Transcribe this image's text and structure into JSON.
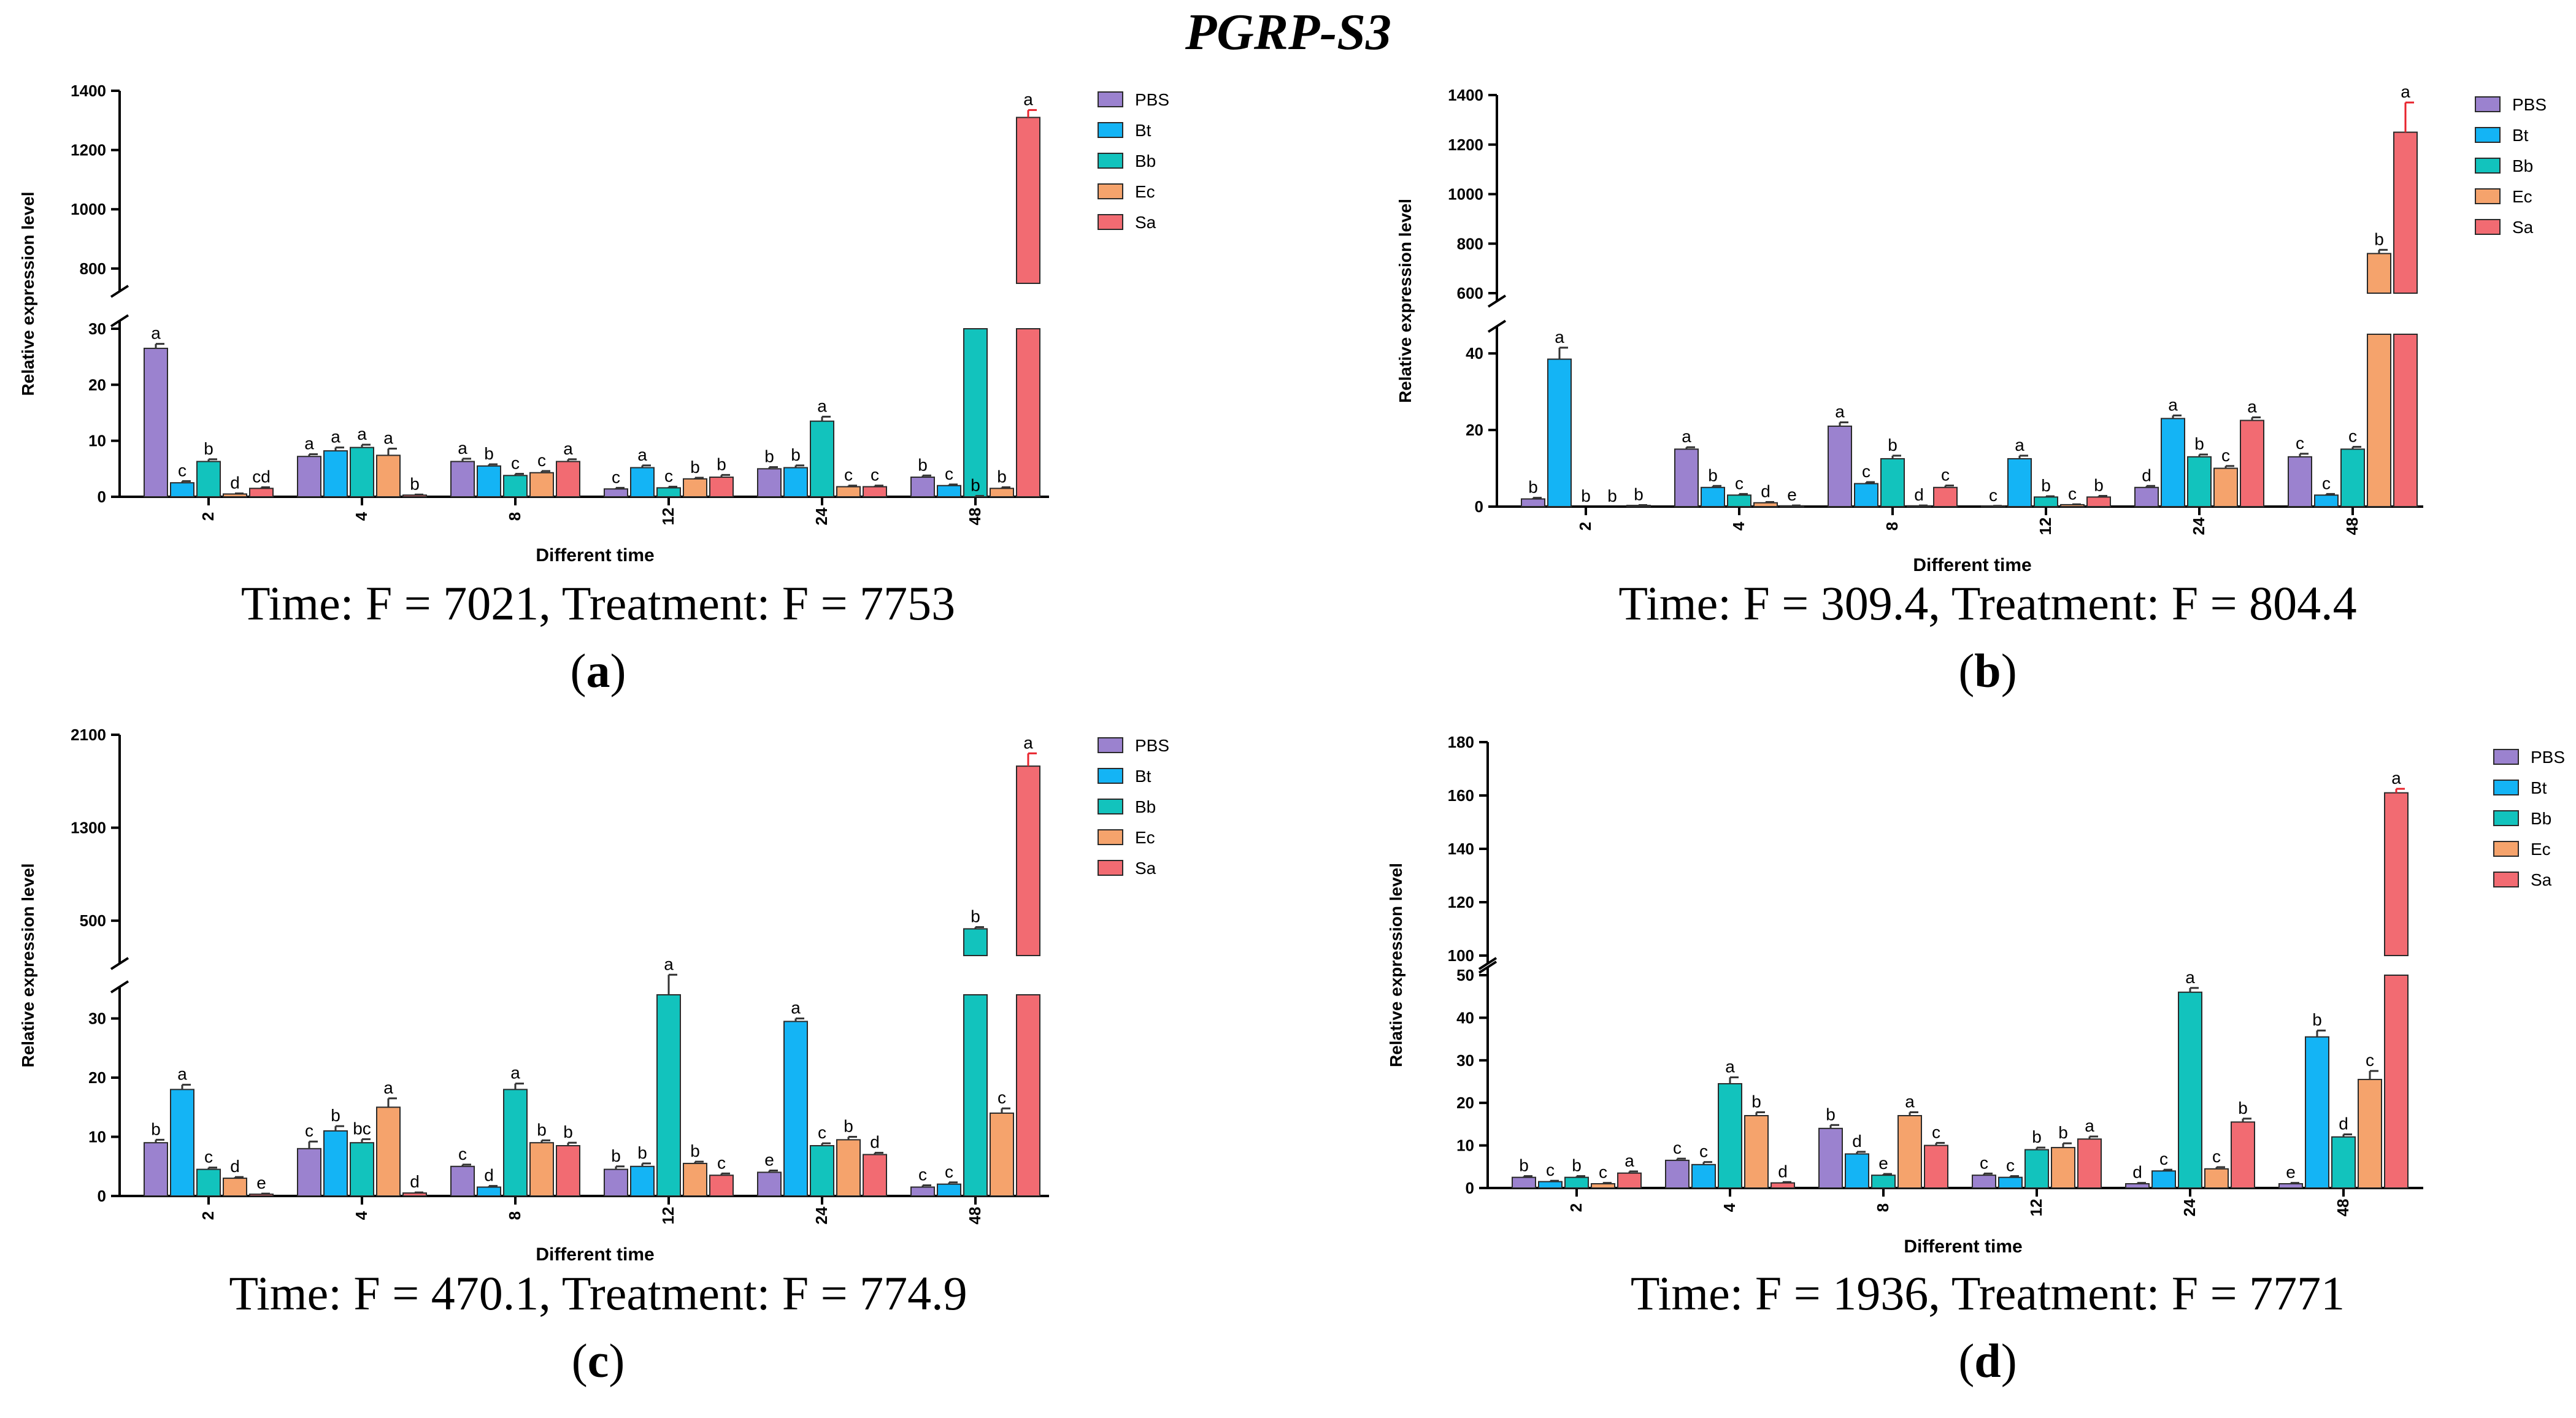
{
  "figure_title": "PGRP-S3",
  "legend_items": [
    "PBS",
    "Bt",
    "Bb",
    "Ec",
    "Sa"
  ],
  "colors": {
    "PBS": "#9b82cf",
    "Bt": "#14b4f5",
    "Bb": "#12c3bd",
    "Ec": "#f5a36c",
    "Sa": "#f26b72",
    "error": "#e8232c"
  },
  "chart_data": [
    {
      "panel": "a",
      "type": "bar",
      "title": "PGRP-S3",
      "xlabel": "Different time",
      "ylabel": "Relative expression level",
      "categories": [
        "2",
        "4",
        "8",
        "12",
        "24",
        "48"
      ],
      "series_names": [
        "PBS",
        "Bt",
        "Bb",
        "Ec",
        "Sa"
      ],
      "values": [
        [
          26.5,
          2.5,
          6.3,
          0.5,
          1.5
        ],
        [
          7.2,
          8.2,
          8.8,
          7.4,
          0.3
        ],
        [
          6.3,
          5.5,
          3.8,
          4.3,
          6.3
        ],
        [
          1.4,
          5.2,
          1.6,
          3.2,
          3.5
        ],
        [
          5.0,
          5.2,
          13.5,
          1.8,
          1.8
        ],
        [
          3.5,
          2.0,
          30.5,
          1.5,
          1310
        ]
      ],
      "errors": [
        [
          0.8,
          0.3,
          0.4,
          0.1,
          0.2
        ],
        [
          0.4,
          0.6,
          0.5,
          1.2,
          0.1
        ],
        [
          0.5,
          0.3,
          0.3,
          0.3,
          0.4
        ],
        [
          0.2,
          0.4,
          0.2,
          0.2,
          0.4
        ],
        [
          0.3,
          0.4,
          0.8,
          0.2,
          0.2
        ],
        [
          0.3,
          0.2,
          2.0,
          0.2,
          25
        ]
      ],
      "letters": [
        [
          "a",
          "c",
          "b",
          "d",
          "cd"
        ],
        [
          "a",
          "a",
          "a",
          "a",
          "b"
        ],
        [
          "a",
          "b",
          "c",
          "c",
          "a"
        ],
        [
          "c",
          "a",
          "c",
          "b",
          "b"
        ],
        [
          "b",
          "b",
          "a",
          "c",
          "c"
        ],
        [
          "b",
          "c",
          "b",
          "b",
          "a"
        ]
      ],
      "axis": {
        "lower_range": [
          0,
          30
        ],
        "lower_ticks": [
          0,
          10,
          20,
          30
        ],
        "upper_range": [
          750,
          1400
        ],
        "upper_ticks": [
          800,
          1000,
          1200,
          1400
        ]
      },
      "stats": "Time: F = 7021, Treatment: F = 7753",
      "label_open": "(",
      "label_letter": "a",
      "label_close": ")"
    },
    {
      "panel": "b",
      "type": "bar",
      "title": "PGRP-S3",
      "xlabel": "Different time",
      "ylabel": "Relative expression level",
      "categories": [
        "2",
        "4",
        "8",
        "12",
        "24",
        "48"
      ],
      "series_names": [
        "PBS",
        "Bt",
        "Bb",
        "Ec",
        "Sa"
      ],
      "values": [
        [
          2.0,
          38.5,
          0,
          0,
          0.3
        ],
        [
          15.0,
          5.0,
          3.0,
          1.0,
          0.2
        ],
        [
          21.0,
          6.0,
          12.5,
          0.2,
          5.0
        ],
        [
          0.1,
          12.5,
          2.5,
          0.5,
          2.5
        ],
        [
          5.0,
          23.0,
          13.0,
          10.0,
          22.5
        ],
        [
          13.0,
          3.0,
          15.0,
          760,
          1250
        ]
      ],
      "errors": [
        [
          0.3,
          3.0,
          0,
          0,
          0.1
        ],
        [
          0.5,
          0.4,
          0.3,
          0.2,
          0.1
        ],
        [
          1.0,
          0.4,
          0.8,
          0.1,
          0.5
        ],
        [
          0.1,
          0.8,
          0.2,
          0.1,
          0.3
        ],
        [
          0.4,
          0.8,
          0.6,
          0.6,
          0.8
        ],
        [
          0.8,
          0.3,
          0.6,
          15,
          120
        ]
      ],
      "letters": [
        [
          "b",
          "a",
          "b",
          "b",
          "b"
        ],
        [
          "a",
          "b",
          "c",
          "d",
          "e"
        ],
        [
          "a",
          "c",
          "b",
          "d",
          "c"
        ],
        [
          "c",
          "a",
          "b",
          "c",
          "b"
        ],
        [
          "d",
          "a",
          "b",
          "c",
          "a"
        ],
        [
          "c",
          "c",
          "c",
          "b",
          "a"
        ]
      ],
      "axis": {
        "lower_range": [
          0,
          45
        ],
        "lower_ticks": [
          0,
          20,
          40
        ],
        "upper_range": [
          600,
          1400
        ],
        "upper_ticks": [
          600,
          800,
          1000,
          1200,
          1400
        ]
      },
      "stats": "Time: F = 309.4, Treatment: F = 804.4",
      "label_open": "(",
      "label_letter": "b",
      "label_close": ")"
    },
    {
      "panel": "c",
      "type": "bar",
      "title": "PGRP-S3",
      "xlabel": "Different time",
      "ylabel": "Relative expression level",
      "categories": [
        "2",
        "4",
        "8",
        "12",
        "24",
        "48"
      ],
      "series_names": [
        "PBS",
        "Bt",
        "Bb",
        "Ec",
        "Sa"
      ],
      "values": [
        [
          9.0,
          18.0,
          4.5,
          3.0,
          0.3
        ],
        [
          8.0,
          11.0,
          9.0,
          15.0,
          0.5
        ],
        [
          5.0,
          1.5,
          18.0,
          9.0,
          8.5
        ],
        [
          4.5,
          5.0,
          34.0,
          5.5,
          3.5
        ],
        [
          4.0,
          29.5,
          8.5,
          9.5,
          7.0
        ],
        [
          1.5,
          2.0,
          430,
          14.0,
          1830
        ]
      ],
      "errors": [
        [
          0.5,
          0.8,
          0.3,
          0.2,
          0.1
        ],
        [
          1.2,
          0.8,
          0.6,
          1.5,
          0.1
        ],
        [
          0.3,
          0.2,
          1.0,
          0.4,
          0.5
        ],
        [
          0.5,
          0.5,
          1.0,
          0.3,
          0.3
        ],
        [
          0.3,
          0.5,
          0.4,
          0.5,
          0.3
        ],
        [
          0.3,
          0.3,
          15,
          0.8,
          110
        ]
      ],
      "letters": [
        [
          "b",
          "a",
          "c",
          "d",
          "e"
        ],
        [
          "c",
          "b",
          "bc",
          "a",
          "d"
        ],
        [
          "c",
          "d",
          "a",
          "b",
          "b"
        ],
        [
          "b",
          "b",
          "a",
          "b",
          "c"
        ],
        [
          "e",
          "a",
          "c",
          "b",
          "d"
        ],
        [
          "c",
          "c",
          "b",
          "c",
          "a"
        ]
      ],
      "axis": {
        "lower_range": [
          0,
          34
        ],
        "lower_ticks": [
          0,
          10,
          20,
          30
        ],
        "upper_range": [
          200,
          2100
        ],
        "upper_ticks": [
          500,
          1300,
          2100
        ]
      },
      "stats": "Time: F = 470.1, Treatment: F = 774.9",
      "label_open": "(",
      "label_letter": "c",
      "label_close": ")"
    },
    {
      "panel": "d",
      "type": "bar",
      "title": "PGRP-S3",
      "xlabel": "Different time",
      "ylabel": "Relative expression level",
      "categories": [
        "2",
        "4",
        "8",
        "12",
        "24",
        "48"
      ],
      "series_names": [
        "PBS",
        "Bt",
        "Bb",
        "Ec",
        "Sa"
      ],
      "values": [
        [
          2.5,
          1.5,
          2.5,
          1.0,
          3.5
        ],
        [
          6.5,
          5.5,
          24.5,
          17.0,
          1.2
        ],
        [
          14.0,
          8.0,
          3.0,
          17.0,
          10.0
        ],
        [
          3.0,
          2.5,
          9.0,
          9.5,
          11.5
        ],
        [
          1.0,
          4.0,
          46.0,
          4.5,
          15.5
        ],
        [
          1.0,
          35.5,
          12.0,
          25.5,
          161
        ]
      ],
      "errors": [
        [
          0.3,
          0.2,
          0.3,
          0.2,
          0.4
        ],
        [
          0.4,
          0.6,
          1.5,
          0.8,
          0.2
        ],
        [
          0.8,
          0.5,
          0.3,
          0.8,
          0.6
        ],
        [
          0.4,
          0.3,
          0.5,
          1.0,
          0.6
        ],
        [
          0.2,
          0.3,
          1.0,
          0.4,
          0.8
        ],
        [
          0.2,
          1.5,
          0.6,
          2.0,
          1.5
        ]
      ],
      "letters": [
        [
          "b",
          "c",
          "b",
          "c",
          "a"
        ],
        [
          "c",
          "c",
          "a",
          "b",
          "d"
        ],
        [
          "b",
          "d",
          "e",
          "a",
          "c"
        ],
        [
          "c",
          "c",
          "b",
          "b",
          "a"
        ],
        [
          "d",
          "c",
          "a",
          "c",
          "b"
        ],
        [
          "e",
          "b",
          "d",
          "c",
          "a"
        ]
      ],
      "axis": {
        "lower_range": [
          0,
          50
        ],
        "lower_ticks": [
          0,
          10,
          20,
          30,
          40,
          50
        ],
        "upper_range": [
          100,
          180
        ],
        "upper_ticks": [
          100,
          120,
          140,
          160,
          180
        ]
      },
      "stats": "Time: F = 1936, Treatment: F = 7771",
      "label_open": "(",
      "label_letter": "d",
      "label_close": ")"
    }
  ]
}
